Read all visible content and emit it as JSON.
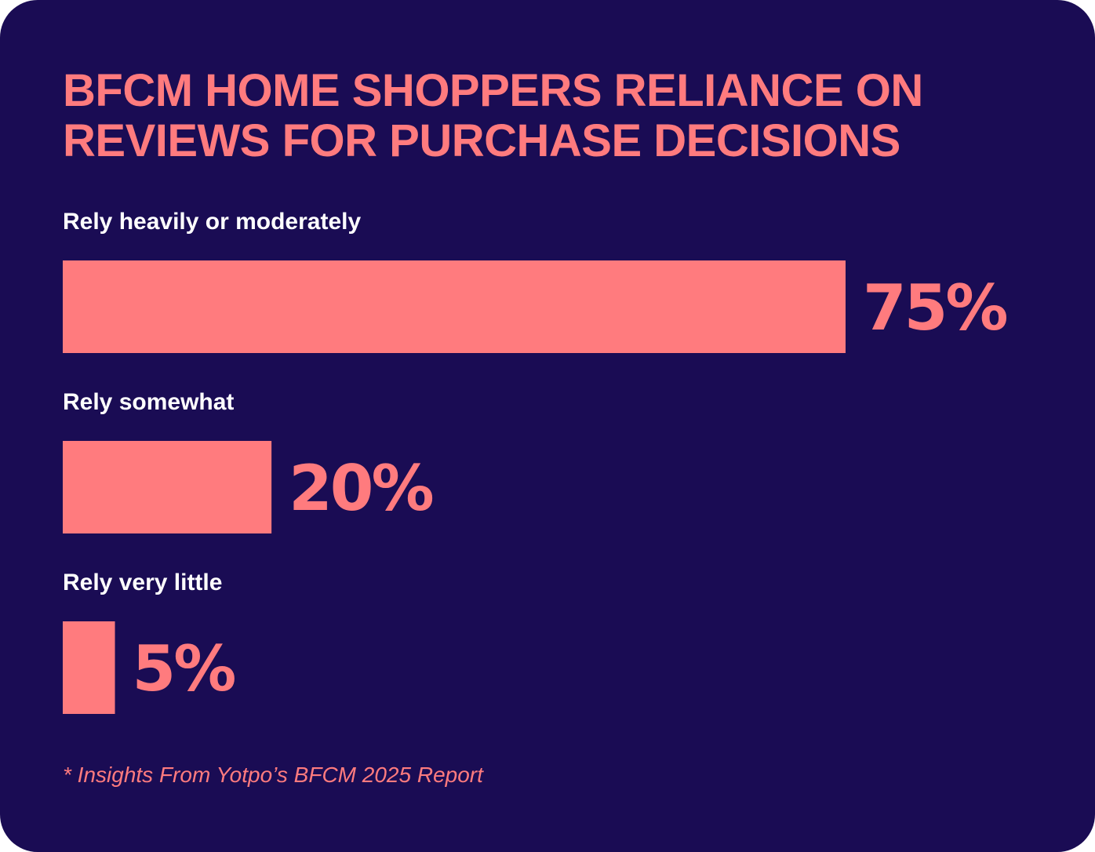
{
  "colors": {
    "background": "#1a0c54",
    "accent": "#ff7b7e",
    "label": "#ffffff"
  },
  "title_lines": [
    "BFCM HOME SHOPPERS RELIANCE ON",
    "REVIEWS FOR PURCHASE DECISIONS"
  ],
  "footnote": "* Insights From Yotpo’s BFCM 2025 Report",
  "chart_data": {
    "type": "bar",
    "orientation": "horizontal",
    "title": "BFCM HOME SHOPPERS RELIANCE ON REVIEWS FOR PURCHASE DECISIONS",
    "categories": [
      "Rely heavily or moderately",
      "Rely somewhat",
      "Rely very little"
    ],
    "values": [
      75,
      20,
      5
    ],
    "value_labels": [
      "75%",
      "20%",
      "5%"
    ],
    "unit": "%",
    "xlim": [
      0,
      75
    ],
    "grid": false,
    "legend": "none"
  }
}
